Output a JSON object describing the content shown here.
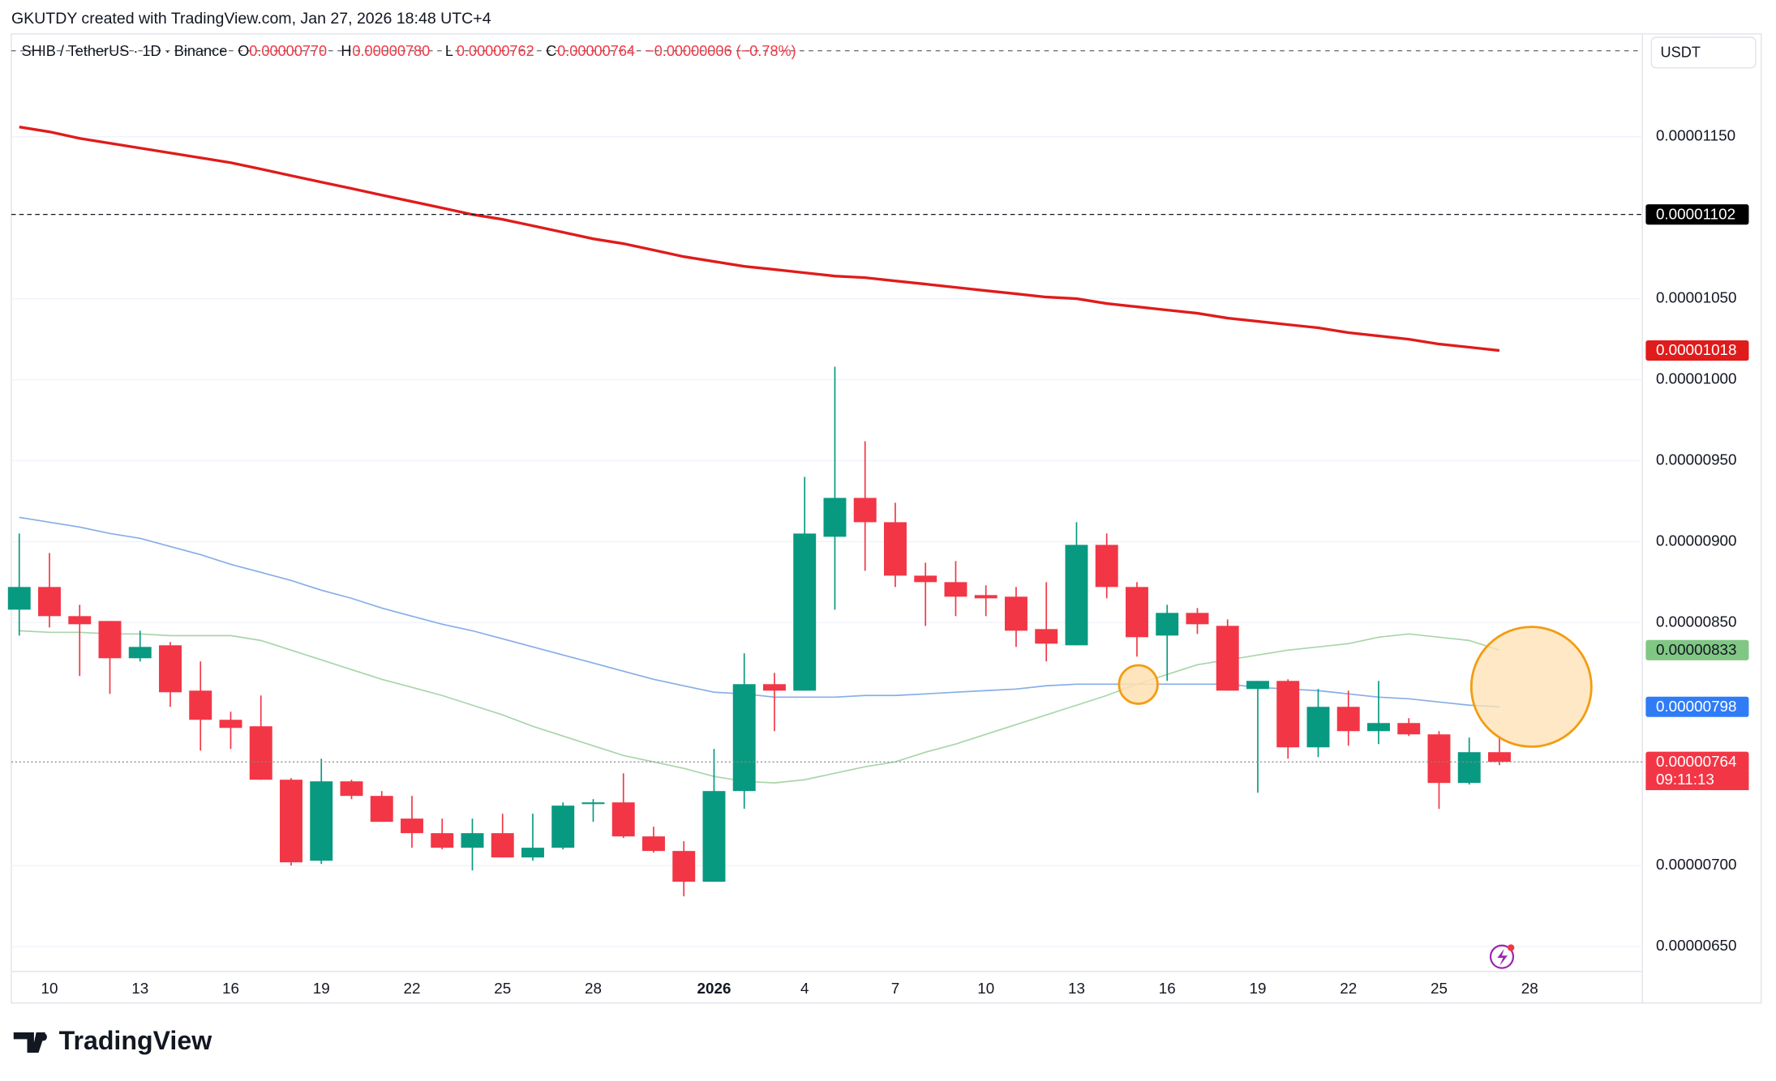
{
  "header": {
    "attribution": "GKUTDY created with TradingView.com, Jan 27, 2026 18:48 UTC+4"
  },
  "footer": {
    "brand": "TradingView"
  },
  "chart_data": {
    "type": "candlestick",
    "symbol": "SHIB / TetherUS · 1D · Binance",
    "ohlc_legend": [
      {
        "key": "O",
        "value": "0.00000770"
      },
      {
        "key": "H",
        "value": "0.00000780"
      },
      {
        "key": "L",
        "value": "0.00000762"
      },
      {
        "key": "C",
        "value": "0.00000764"
      }
    ],
    "change": "−0.00000006 (−0.78%)",
    "unit": "USDT",
    "categories": [
      null,
      "10",
      null,
      null,
      "13",
      null,
      null,
      "16",
      null,
      null,
      "19",
      null,
      null,
      "22",
      null,
      null,
      "25",
      null,
      null,
      "28",
      null,
      null,
      null,
      "2026",
      null,
      null,
      "4",
      null,
      null,
      "7",
      null,
      null,
      "10",
      null,
      null,
      "13",
      null,
      null,
      "16",
      null,
      null,
      "19",
      null,
      null,
      "22",
      null,
      null,
      "25",
      null,
      null,
      "28"
    ],
    "open": [
      8.58e-06,
      8.72e-06,
      8.54e-06,
      8.51e-06,
      8.28e-06,
      8.36e-06,
      8.08e-06,
      7.9e-06,
      7.86e-06,
      7.53e-06,
      7.03e-06,
      7.52e-06,
      7.43e-06,
      7.29e-06,
      7.2e-06,
      7.11e-06,
      7.2e-06,
      7.05e-06,
      7.11e-06,
      7.38e-06,
      7.39e-06,
      7.18e-06,
      7.09e-06,
      6.9e-06,
      7.46e-06,
      8.12e-06,
      8.08e-06,
      9.03e-06,
      9.27e-06,
      9.12e-06,
      8.79e-06,
      8.75e-06,
      8.67e-06,
      8.66e-06,
      8.46e-06,
      8.36e-06,
      8.98e-06,
      8.72e-06,
      8.42e-06,
      8.56e-06,
      8.48e-06,
      8.09e-06,
      8.14e-06,
      7.73e-06,
      7.98e-06,
      7.83e-06,
      7.88e-06,
      7.81e-06,
      7.51e-06,
      7.7e-06,
      null
    ],
    "high": [
      9.05e-06,
      8.93e-06,
      8.61e-06,
      8.51e-06,
      8.45e-06,
      8.38e-06,
      8.26e-06,
      7.95e-06,
      8.05e-06,
      7.54e-06,
      7.66e-06,
      7.53e-06,
      7.46e-06,
      7.43e-06,
      7.29e-06,
      7.29e-06,
      7.32e-06,
      7.32e-06,
      7.39e-06,
      7.41e-06,
      7.57e-06,
      7.24e-06,
      7.15e-06,
      7.72e-06,
      8.31e-06,
      8.19e-06,
      9.4e-06,
      1.008e-05,
      9.62e-06,
      9.24e-06,
      8.87e-06,
      8.88e-06,
      8.73e-06,
      8.72e-06,
      8.75e-06,
      9.12e-06,
      9.05e-06,
      8.75e-06,
      8.61e-06,
      8.59e-06,
      8.52e-06,
      8.14e-06,
      8.15e-06,
      8.09e-06,
      8.08e-06,
      8.14e-06,
      7.91e-06,
      7.83e-06,
      7.79e-06,
      7.8e-06,
      null
    ],
    "low": [
      8.42e-06,
      8.47e-06,
      8.17e-06,
      8.06e-06,
      8.26e-06,
      7.98e-06,
      7.71e-06,
      7.72e-06,
      7.53e-06,
      7e-06,
      7.01e-06,
      7.41e-06,
      7.27e-06,
      7.11e-06,
      7.1e-06,
      6.97e-06,
      7.05e-06,
      7.03e-06,
      7.1e-06,
      7.27e-06,
      7.17e-06,
      7.08e-06,
      6.81e-06,
      6.9e-06,
      7.35e-06,
      7.83e-06,
      8.08e-06,
      8.58e-06,
      8.82e-06,
      8.72e-06,
      8.48e-06,
      8.54e-06,
      8.54e-06,
      8.35e-06,
      8.26e-06,
      8.36e-06,
      8.65e-06,
      8.29e-06,
      8.14e-06,
      8.43e-06,
      8.08e-06,
      7.45e-06,
      7.66e-06,
      7.67e-06,
      7.74e-06,
      7.75e-06,
      7.8e-06,
      7.35e-06,
      7.5e-06,
      7.62e-06,
      null
    ],
    "close": [
      8.72e-06,
      8.54e-06,
      8.49e-06,
      8.28e-06,
      8.35e-06,
      8.07e-06,
      7.9e-06,
      7.85e-06,
      7.53e-06,
      7.02e-06,
      7.52e-06,
      7.43e-06,
      7.27e-06,
      7.2e-06,
      7.11e-06,
      7.2e-06,
      7.05e-06,
      7.11e-06,
      7.37e-06,
      7.39e-06,
      7.18e-06,
      7.09e-06,
      6.9e-06,
      7.46e-06,
      8.12e-06,
      8.08e-06,
      9.05e-06,
      9.27e-06,
      9.12e-06,
      8.79e-06,
      8.75e-06,
      8.66e-06,
      8.65e-06,
      8.45e-06,
      8.37e-06,
      8.98e-06,
      8.72e-06,
      8.41e-06,
      8.56e-06,
      8.49e-06,
      8.08e-06,
      8.14e-06,
      7.73e-06,
      7.98e-06,
      7.83e-06,
      7.88e-06,
      7.81e-06,
      7.51e-06,
      7.7e-06,
      7.64e-06,
      null
    ],
    "up_color": "#089981",
    "down_color": "#f23645",
    "lines": [
      {
        "color": "#e01b1b",
        "values": [
          1.156e-05,
          1.153e-05,
          1.149e-05,
          1.146e-05,
          1.143e-05,
          1.14e-05,
          1.137e-05,
          1.134e-05,
          1.13e-05,
          1.126e-05,
          1.122e-05,
          1.118e-05,
          1.114e-05,
          1.11e-05,
          1.106e-05,
          1.102e-05,
          1.099e-05,
          1.095e-05,
          1.091e-05,
          1.087e-05,
          1.084e-05,
          1.08e-05,
          1.076e-05,
          1.073e-05,
          1.07e-05,
          1.068e-05,
          1.066e-05,
          1.064e-05,
          1.063e-05,
          1.061e-05,
          1.059e-05,
          1.057e-05,
          1.055e-05,
          1.053e-05,
          1.051e-05,
          1.05e-05,
          1.047e-05,
          1.045e-05,
          1.043e-05,
          1.041e-05,
          1.038e-05,
          1.036e-05,
          1.034e-05,
          1.032e-05,
          1.029e-05,
          1.027e-05,
          1.025e-05,
          1.022e-05,
          1.02e-05,
          1.018e-05,
          null
        ]
      },
      {
        "color": "#86aee6",
        "values": [
          9.15e-06,
          9.12e-06,
          9.09e-06,
          9.05e-06,
          9.02e-06,
          8.97e-06,
          8.92e-06,
          8.86e-06,
          8.81e-06,
          8.76e-06,
          8.7e-06,
          8.65e-06,
          8.59e-06,
          8.54e-06,
          8.49e-06,
          8.45e-06,
          8.4e-06,
          8.35e-06,
          8.3e-06,
          8.25e-06,
          8.2e-06,
          8.15e-06,
          8.11e-06,
          8.07e-06,
          8.06e-06,
          8.04e-06,
          8.04e-06,
          8.04e-06,
          8.05e-06,
          8.05e-06,
          8.06e-06,
          8.07e-06,
          8.08e-06,
          8.09e-06,
          8.11e-06,
          8.12e-06,
          8.12e-06,
          8.12e-06,
          8.12e-06,
          8.12e-06,
          8.12e-06,
          8.1e-06,
          8.09e-06,
          8.08e-06,
          8.06e-06,
          8.04e-06,
          8.03e-06,
          8.01e-06,
          7.99e-06,
          7.98e-06,
          null
        ]
      },
      {
        "color": "#a8d5aa",
        "values": [
          8.45e-06,
          8.44e-06,
          8.44e-06,
          8.43e-06,
          8.43e-06,
          8.42e-06,
          8.42e-06,
          8.42e-06,
          8.39e-06,
          8.33e-06,
          8.27e-06,
          8.21e-06,
          8.15e-06,
          8.1e-06,
          8.05e-06,
          7.99e-06,
          7.93e-06,
          7.86e-06,
          7.8e-06,
          7.74e-06,
          7.68e-06,
          7.64e-06,
          7.6e-06,
          7.55e-06,
          7.52e-06,
          7.51e-06,
          7.53e-06,
          7.57e-06,
          7.61e-06,
          7.64e-06,
          7.7e-06,
          7.75e-06,
          7.81e-06,
          7.87e-06,
          7.93e-06,
          7.99e-06,
          8.05e-06,
          8.12e-06,
          8.18e-06,
          8.24e-06,
          8.27e-06,
          8.3e-06,
          8.33e-06,
          8.35e-06,
          8.37e-06,
          8.41e-06,
          8.43e-06,
          8.41e-06,
          8.39e-06,
          8.33e-06,
          null
        ]
      }
    ],
    "price_labels": [
      {
        "value": 1.102e-05,
        "label": "0.00001102",
        "color": "#000000",
        "text_color": "#ffffff",
        "line": "dashed"
      },
      {
        "value": 1.018e-05,
        "label": "0.00001018",
        "color": "#e01b1b",
        "text_color": "#ffffff"
      },
      {
        "value": 8.33e-06,
        "label": "0.00000833",
        "color": "#81c784",
        "text_color": "#131722"
      },
      {
        "value": 7.98e-06,
        "label": "0.00000798",
        "color": "#2f7cf6",
        "text_color": "#ffffff"
      },
      {
        "value": 7.64e-06,
        "label": "0.00000764",
        "color": "#f23645",
        "text_color": "#ffffff",
        "line": "dotted"
      }
    ],
    "countdown": "09:11:13",
    "ylim": [
      6.151e-06,
      1.2135e-05
    ],
    "yticks": [
      {
        "value": 6.5e-06,
        "label": "0.00000650"
      },
      {
        "value": 7e-06,
        "label": "0.00000700"
      },
      {
        "value": 8.5e-06,
        "label": "0.00000850"
      },
      {
        "value": 9e-06,
        "label": "0.00000900"
      },
      {
        "value": 9.5e-06,
        "label": "0.00000950"
      },
      {
        "value": 1e-05,
        "label": "0.00001000"
      },
      {
        "value": 1.05e-05,
        "label": "0.00001050"
      },
      {
        "value": 1.15e-05,
        "label": "0.00001150"
      }
    ],
    "grid": true
  }
}
